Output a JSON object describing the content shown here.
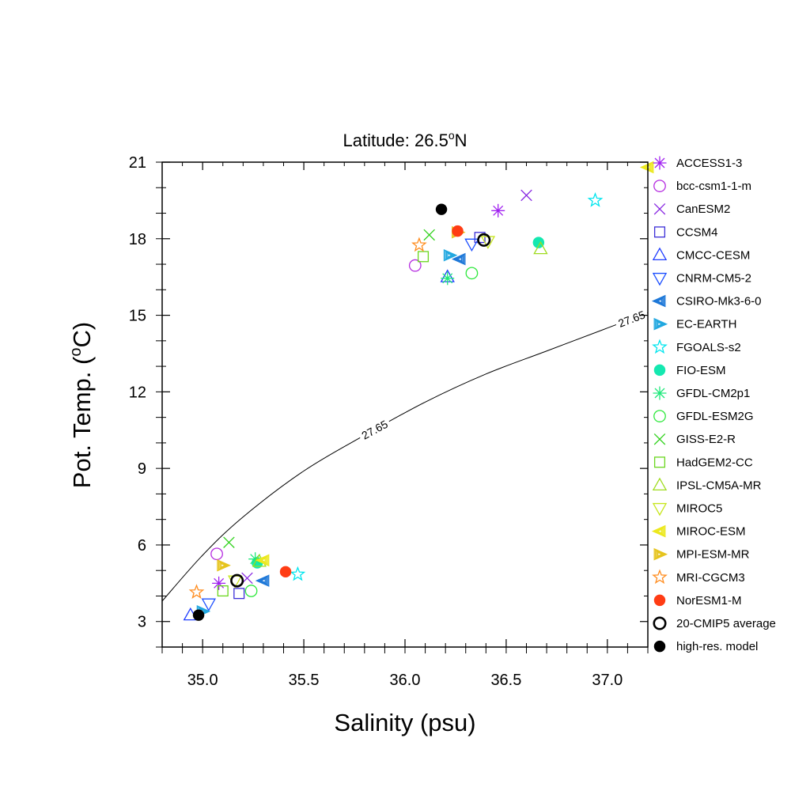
{
  "chart_data": {
    "type": "scatter",
    "title": "Latitude: 26.5",
    "title_superscript": "o",
    "title_suffix": "N",
    "xlabel": "Salinity (psu)",
    "ylabel_prefix": "Pot. Temp. (",
    "ylabel_superscript": "o",
    "ylabel_suffix": "C)",
    "xlim": [
      34.8,
      37.2
    ],
    "ylim": [
      2,
      21
    ],
    "x_ticks": [
      35.0,
      35.5,
      36.0,
      36.5,
      37.0
    ],
    "x_tick_labels": [
      "35.0",
      "35.5",
      "36.0",
      "36.5",
      "37.0"
    ],
    "y_ticks": [
      3,
      6,
      9,
      12,
      15,
      18,
      21
    ],
    "y_tick_labels": [
      "3",
      "6",
      "9",
      "12",
      "15",
      "18",
      "21"
    ],
    "grid": false,
    "legend_position": "right",
    "contour": {
      "label": "27.65",
      "points": [
        [
          34.8,
          3.8
        ],
        [
          35.0,
          5.6
        ],
        [
          35.2,
          7.1
        ],
        [
          35.5,
          8.9
        ],
        [
          35.8,
          10.3
        ],
        [
          36.1,
          11.6
        ],
        [
          36.4,
          12.7
        ],
        [
          36.7,
          13.6
        ],
        [
          37.0,
          14.5
        ],
        [
          37.2,
          15.1
        ]
      ]
    },
    "series": [
      {
        "name": "ACCESS1-3",
        "marker": "asterisk",
        "color": "#a020f0",
        "points": [
          [
            36.46,
            19.1
          ],
          [
            35.08,
            4.5
          ]
        ]
      },
      {
        "name": "bcc-csm1-1-m",
        "marker": "circle",
        "color": "#b52be0",
        "points": [
          [
            36.05,
            16.95
          ],
          [
            35.07,
            5.65
          ]
        ]
      },
      {
        "name": "CanESM2",
        "marker": "x",
        "color": "#8a2be2",
        "points": [
          [
            36.6,
            19.7
          ],
          [
            35.22,
            4.7
          ]
        ]
      },
      {
        "name": "CCSM4",
        "marker": "square",
        "color": "#3c2fd8",
        "points": [
          [
            36.37,
            18.05
          ],
          [
            35.18,
            4.1
          ]
        ]
      },
      {
        "name": "CMCC-CESM",
        "marker": "triangle-up",
        "color": "#1e3cff",
        "points": [
          [
            36.21,
            16.5
          ],
          [
            34.94,
            3.25
          ]
        ]
      },
      {
        "name": "CNRM-CM5-2",
        "marker": "triangle-down",
        "color": "#1e50ff",
        "points": [
          [
            36.33,
            17.8
          ],
          [
            35.03,
            3.7
          ]
        ]
      },
      {
        "name": "CSIRO-Mk3-6-0",
        "marker": "hatched-left",
        "color": "#1e78d8",
        "points": [
          [
            36.27,
            17.2
          ],
          [
            35.3,
            4.6
          ]
        ]
      },
      {
        "name": "EC-EARTH",
        "marker": "hatched-right",
        "color": "#22a8e0",
        "points": [
          [
            36.22,
            17.35
          ],
          [
            35.0,
            3.4
          ]
        ]
      },
      {
        "name": "FGOALS-s2",
        "marker": "star",
        "color": "#00e5ee",
        "points": [
          [
            36.94,
            19.5
          ],
          [
            35.47,
            4.85
          ]
        ]
      },
      {
        "name": "FIO-ESM",
        "marker": "filled-circle",
        "color": "#14e8b0",
        "points": [
          [
            36.66,
            17.85
          ],
          [
            35.27,
            5.3
          ]
        ]
      },
      {
        "name": "GFDL-CM2p1",
        "marker": "asterisk",
        "color": "#1ee87a",
        "points": [
          [
            36.21,
            16.45
          ],
          [
            35.26,
            5.45
          ]
        ]
      },
      {
        "name": "GFDL-ESM2G",
        "marker": "circle",
        "color": "#2ee83c",
        "points": [
          [
            36.33,
            16.65
          ],
          [
            35.24,
            4.2
          ]
        ]
      },
      {
        "name": "GISS-E2-R",
        "marker": "x",
        "color": "#32d21e",
        "points": [
          [
            36.12,
            18.15
          ],
          [
            35.13,
            6.1
          ]
        ]
      },
      {
        "name": "HadGEM2-CC",
        "marker": "square",
        "color": "#6ad71e",
        "points": [
          [
            36.09,
            17.3
          ],
          [
            35.1,
            4.2
          ]
        ]
      },
      {
        "name": "IPSL-CM5A-MR",
        "marker": "triangle-up",
        "color": "#9fdc1e",
        "points": [
          [
            36.67,
            17.6
          ],
          [
            35.28,
            5.35
          ]
        ]
      },
      {
        "name": "MIROC5",
        "marker": "triangle-down",
        "color": "#c8e61e",
        "points": [
          [
            36.41,
            17.9
          ],
          [
            35.16,
            4.6
          ]
        ]
      },
      {
        "name": "MIROC-ESM",
        "marker": "hatched-left",
        "color": "#ece81e",
        "points": [
          [
            37.2,
            20.8
          ],
          [
            35.3,
            5.4
          ]
        ]
      },
      {
        "name": "MPI-ESM-MR",
        "marker": "hatched-right",
        "color": "#e6c41e",
        "points": [
          [
            36.26,
            18.25
          ],
          [
            35.1,
            5.2
          ]
        ]
      },
      {
        "name": "MRI-CGCM3",
        "marker": "star",
        "color": "#ff8c1e",
        "points": [
          [
            36.07,
            17.75
          ],
          [
            34.97,
            4.15
          ]
        ]
      },
      {
        "name": "NorESM1-M",
        "marker": "filled-circle",
        "color": "#ff3c14",
        "points": [
          [
            36.26,
            18.3
          ],
          [
            35.41,
            4.95
          ]
        ]
      },
      {
        "name": "20-CMIP5 average",
        "marker": "bold-circle",
        "color": "#000000",
        "points": [
          [
            36.39,
            17.95
          ],
          [
            35.17,
            4.6
          ]
        ]
      },
      {
        "name": "high-res. model",
        "marker": "filled-circle",
        "color": "#000000",
        "points": [
          [
            36.18,
            19.15
          ],
          [
            34.98,
            3.25
          ]
        ]
      }
    ]
  }
}
